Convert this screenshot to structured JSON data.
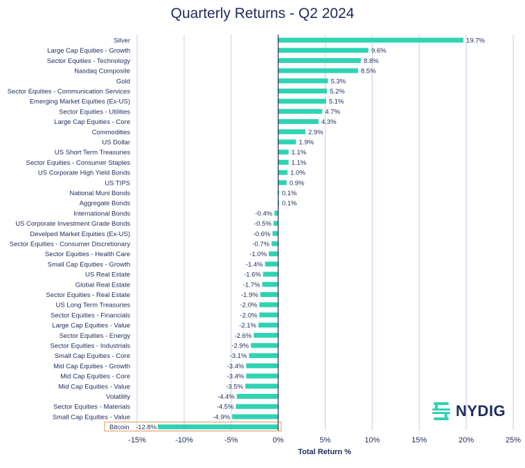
{
  "chart_data": {
    "type": "bar",
    "orientation": "horizontal",
    "title": "Quarterly Returns - Q2 2024",
    "xlabel": "Total Return %",
    "ylabel": "",
    "xlim": [
      -15,
      25
    ],
    "xticks": [
      "-15%",
      "-10%",
      "-5%",
      "0%",
      "5%",
      "10%",
      "15%",
      "20%",
      "25%"
    ],
    "grid": "vertical",
    "bar_color": "#2fd3b3",
    "grid_color": "#c9cde8",
    "highlight_color": "#e9a66b",
    "highlight_category": "Bitcoin",
    "categories": [
      "Silver",
      "Large Cap Equities - Growth",
      "Sector Equities - Technology",
      "Nasdaq Composite",
      "Gold",
      "Sector Equities - Communication Services",
      "Emerging Market Equities (Ex-US)",
      "Sector Equities - Utilities",
      "Large Cap Equities - Core",
      "Commodities",
      "US Dollar",
      "US Short Term Treasuries",
      "Sector Equities - Consumer Staples",
      "US Corporate High Yield Bonds",
      "US TIPS",
      "National Muni Bonds",
      "Aggregate Bonds",
      "International Bonds",
      "US Corporate Investment Grade Bonds",
      "Develped Market Equities (Ex-US)",
      "Sector Equities - Consumer Discretionary",
      "Sector Equities - Health Care",
      "Small Cap Equities - Growth",
      "US Real Estate",
      "Global Real Estate",
      "Sector Equities - Real Estate",
      "US Long Term Treasuries",
      "Sector Equities - Financials",
      "Large Cap Equities - Value",
      "Sector Equities - Energy",
      "Sector Equities - Industrials",
      "Small Cap Equities - Core",
      "Mid Cap Equities - Growth",
      "Mid Cap Equities - Core",
      "Mid Cap Equities - Value",
      "Volatility",
      "Sector Equities - Materials",
      "Small Cap Equities - Value",
      "Bitcoin"
    ],
    "values": [
      19.7,
      9.6,
      8.8,
      8.5,
      5.3,
      5.2,
      5.1,
      4.7,
      4.3,
      2.9,
      1.9,
      1.1,
      1.1,
      1.0,
      0.9,
      0.1,
      0.1,
      -0.4,
      -0.5,
      -0.6,
      -0.7,
      -1.0,
      -1.4,
      -1.6,
      -1.7,
      -1.9,
      -2.0,
      -2.0,
      -2.1,
      -2.6,
      -2.9,
      -3.1,
      -3.4,
      -3.4,
      -3.5,
      -4.4,
      -4.5,
      -4.9,
      -12.8
    ],
    "data_labels": [
      "19.7%",
      "9.6%",
      "8.8%",
      "8.5%",
      "5.3%",
      "5.2%",
      "5.1%",
      "4.7%",
      "4.3%",
      "2.9%",
      "1.9%",
      "1.1%",
      "1.1%",
      "1.0%",
      "0.9%",
      "0.1%",
      "0.1%",
      "-0.4%",
      "-0.5%",
      "-0.6%",
      "-0.7%",
      "-1.0%",
      "-1.4%",
      "-1.6%",
      "-1.7%",
      "-1.9%",
      "-2.0%",
      "-2.0%",
      "-2.1%",
      "-2.6%",
      "-2.9%",
      "-3.1%",
      "-3.4%",
      "-3.4%",
      "-3.5%",
      "-4.4%",
      "-4.5%",
      "-4.9%",
      "-12.8%"
    ]
  },
  "logo": {
    "text": "NYDIG",
    "icon": "nydig-logo-icon",
    "color": "#1f2d5c",
    "icon_color": "#2fd3b3"
  }
}
